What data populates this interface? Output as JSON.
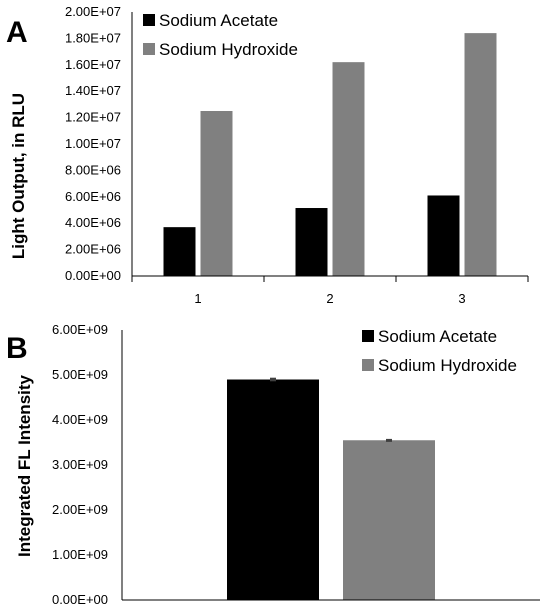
{
  "colors": {
    "sodium_acetate": "#000000",
    "sodium_hydroxide": "#808080",
    "error_bar": "#404040",
    "axis": "#000000"
  },
  "chart_data": [
    {
      "panel_label": "A",
      "type": "bar",
      "categories": [
        "1",
        "2",
        "3"
      ],
      "series": [
        {
          "name": "Sodium Acetate",
          "values": [
            3700000,
            5150000,
            6100000
          ]
        },
        {
          "name": "Sodium Hydroxide",
          "values": [
            12500000,
            16200000,
            18400000
          ]
        }
      ],
      "ylabel": "Light Output, in RLU",
      "xlabel": "",
      "ylim": [
        0,
        20000000
      ],
      "yticks": [
        "0.00E+00",
        "2.00E+06",
        "4.00E+06",
        "6.00E+06",
        "8.00E+06",
        "1.00E+07",
        "1.20E+07",
        "1.40E+07",
        "1.60E+07",
        "1.80E+07",
        "2.00E+07"
      ],
      "legend_position": "top-left",
      "grid": false
    },
    {
      "panel_label": "B",
      "type": "bar",
      "categories": [
        ""
      ],
      "series": [
        {
          "name": "Sodium Acetate",
          "values": [
            4900000000
          ],
          "error": [
            40000000
          ]
        },
        {
          "name": "Sodium Hydroxide",
          "values": [
            3550000000
          ],
          "error": [
            30000000
          ]
        }
      ],
      "ylabel": "Integrated FL Intensity",
      "xlabel": "",
      "ylim": [
        0,
        6000000000
      ],
      "yticks": [
        "0.00E+00",
        "1.00E+09",
        "2.00E+09",
        "3.00E+09",
        "4.00E+09",
        "5.00E+09",
        "6.00E+09"
      ],
      "legend_position": "top-right",
      "grid": false
    }
  ]
}
